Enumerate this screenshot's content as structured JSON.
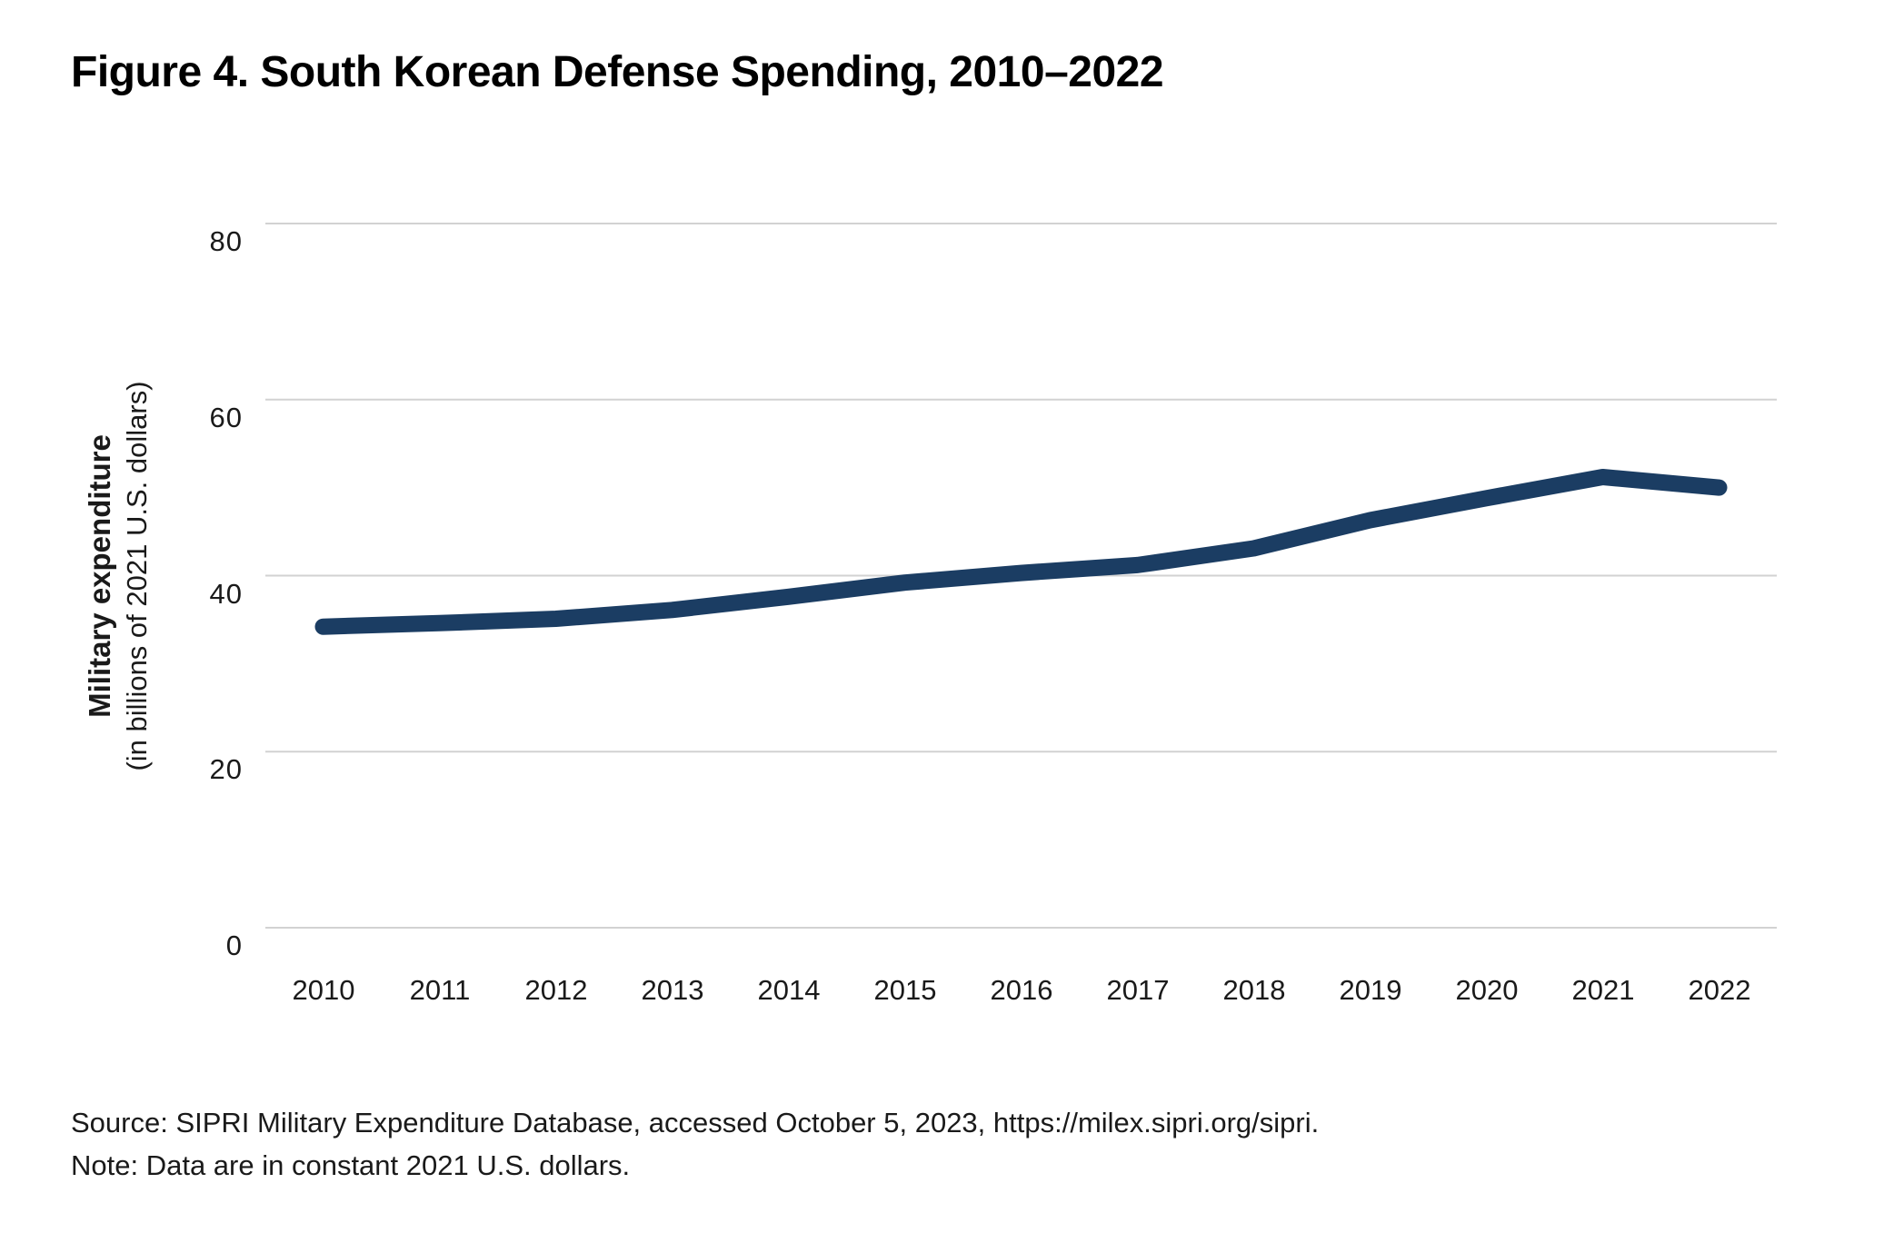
{
  "figure": {
    "title": "Figure 4. South Korean Defense Spending, 2010–2022",
    "source": "Source: SIPRI Military Expenditure Database, accessed October 5, 2023, https://milex.sipri.org/sipri.",
    "note": "Note: Data are in constant 2021 U.S. dollars."
  },
  "chart_data": {
    "type": "line",
    "title": "Figure 4. South Korean Defense Spending, 2010–2022",
    "categories": [
      "2010",
      "2011",
      "2012",
      "2013",
      "2014",
      "2015",
      "2016",
      "2017",
      "2018",
      "2019",
      "2020",
      "2021",
      "2022"
    ],
    "values": [
      34.2,
      34.6,
      35.1,
      36.1,
      37.6,
      39.2,
      40.3,
      41.2,
      43.1,
      46.3,
      48.8,
      51.2,
      50.0
    ],
    "series_name": "South Korean military expenditure",
    "xlabel": "",
    "ylabel": "Military expenditure",
    "ylabel_sub": "(in billions of 2021 U.S. dollars)",
    "ylim": [
      0,
      80
    ],
    "yticks": [
      0,
      20,
      40,
      60,
      80
    ],
    "grid": "horizontal-only",
    "legend": "none",
    "line_color": "#1b3d63",
    "gridline_color": "#d2d2d2"
  }
}
